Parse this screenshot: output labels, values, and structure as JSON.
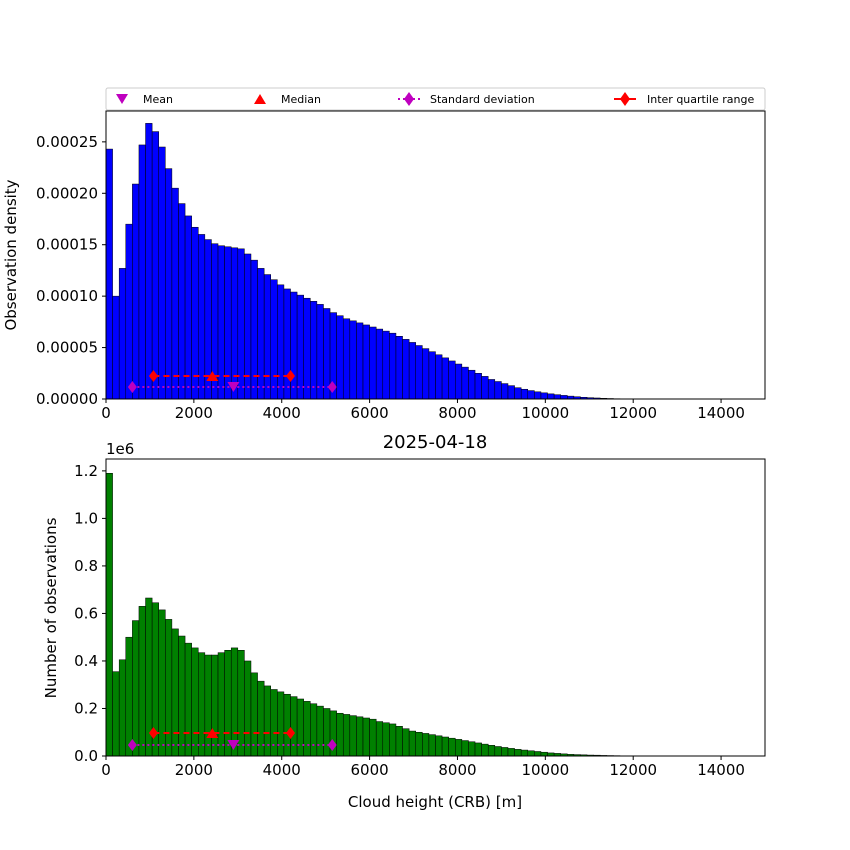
{
  "chart_data": [
    {
      "type": "bar",
      "id": "top",
      "title": "",
      "xlabel": "",
      "ylabel": "Observation density",
      "xlim": [
        0,
        15000
      ],
      "ylim": [
        0,
        0.00028
      ],
      "bin_width": 150,
      "color": "#0000ff",
      "xticks": [
        "0",
        "2000",
        "4000",
        "6000",
        "8000",
        "10000",
        "12000",
        "14000"
      ],
      "yticks": [
        "0.00000",
        "0.00005",
        "0.00010",
        "0.00015",
        "0.00020",
        "0.00025"
      ],
      "legend": {
        "placement": "top",
        "entries": [
          "Mean",
          "Median",
          "Standard deviation",
          "Inter quartile range"
        ]
      },
      "stats": {
        "mean": 2900,
        "median": 2420,
        "std_range": [
          600,
          5150
        ],
        "iqr_range": [
          1080,
          4200
        ]
      },
      "values": [
        0.000243,
        0.0001,
        0.000127,
        0.00017,
        0.000209,
        0.000247,
        0.000268,
        0.00026,
        0.000245,
        0.000224,
        0.000205,
        0.00019,
        0.000178,
        0.000167,
        0.00016,
        0.000155,
        0.000151,
        0.000149,
        0.000148,
        0.000147,
        0.000146,
        0.000141,
        0.000135,
        0.000127,
        0.000121,
        0.000116,
        0.000111,
        0.000107,
        0.000104,
        0.000101,
        9.8e-05,
        9.5e-05,
        9.2e-05,
        8.8e-05,
        8.4e-05,
        8.1e-05,
        7.8e-05,
        7.6e-05,
        7.4e-05,
        7.2e-05,
        7e-05,
        6.8e-05,
        6.6e-05,
        6.4e-05,
        6.1e-05,
        5.8e-05,
        5.5e-05,
        5.2e-05,
        4.9e-05,
        4.6e-05,
        4.3e-05,
        4e-05,
        3.7e-05,
        3.4e-05,
        3.1e-05,
        2.8e-05,
        2.5e-05,
        2.2e-05,
        1.9e-05,
        1.7e-05,
        1.5e-05,
        1.3e-05,
        1.1e-05,
        9.5e-06,
        8.2e-06,
        7e-06,
        6e-06,
        5e-06,
        4.2e-06,
        3.5e-06,
        2.8e-06,
        2.2e-06,
        1.7e-06,
        1.3e-06,
        1e-06,
        7e-07,
        5e-07,
        3e-07,
        2e-07,
        1e-07,
        0,
        0,
        0,
        0,
        0,
        0,
        0,
        0,
        0,
        0,
        0,
        0,
        0,
        0,
        0,
        0,
        0,
        0,
        0,
        0
      ]
    },
    {
      "type": "bar",
      "id": "bottom",
      "title": "2025-04-18",
      "xlabel": "Cloud height (CRB) [m]",
      "ylabel": "Number of observations",
      "y_offset_label": "1e6",
      "xlim": [
        0,
        15000
      ],
      "ylim": [
        0,
        1.25
      ],
      "bin_width": 150,
      "color": "#008000",
      "xticks": [
        "0",
        "2000",
        "4000",
        "6000",
        "8000",
        "10000",
        "12000",
        "14000"
      ],
      "yticks": [
        "0.0",
        "0.2",
        "0.4",
        "0.6",
        "0.8",
        "1.0",
        "1.2"
      ],
      "stats": {
        "mean": 2900,
        "median": 2420,
        "std_range": [
          600,
          5150
        ],
        "iqr_range": [
          1080,
          4200
        ]
      },
      "values": [
        1.19,
        0.355,
        0.405,
        0.5,
        0.57,
        0.63,
        0.665,
        0.645,
        0.615,
        0.575,
        0.535,
        0.505,
        0.475,
        0.455,
        0.435,
        0.425,
        0.425,
        0.435,
        0.445,
        0.455,
        0.445,
        0.4,
        0.35,
        0.315,
        0.295,
        0.28,
        0.27,
        0.26,
        0.25,
        0.24,
        0.23,
        0.22,
        0.21,
        0.2,
        0.19,
        0.18,
        0.175,
        0.17,
        0.165,
        0.16,
        0.155,
        0.145,
        0.14,
        0.135,
        0.125,
        0.115,
        0.105,
        0.1,
        0.095,
        0.09,
        0.085,
        0.08,
        0.075,
        0.07,
        0.065,
        0.06,
        0.055,
        0.05,
        0.045,
        0.04,
        0.036,
        0.032,
        0.028,
        0.025,
        0.022,
        0.019,
        0.016,
        0.013,
        0.011,
        0.009,
        0.007,
        0.006,
        0.005,
        0.004,
        0.0035,
        0.0025,
        0.002,
        0.0015,
        0.001,
        0.0008,
        0.0005,
        0.0004,
        0.0003,
        0.0002,
        0.0001,
        0.0001,
        0,
        0,
        0,
        0,
        0,
        0,
        0,
        0,
        0,
        0,
        0,
        0,
        0,
        0
      ]
    }
  ]
}
